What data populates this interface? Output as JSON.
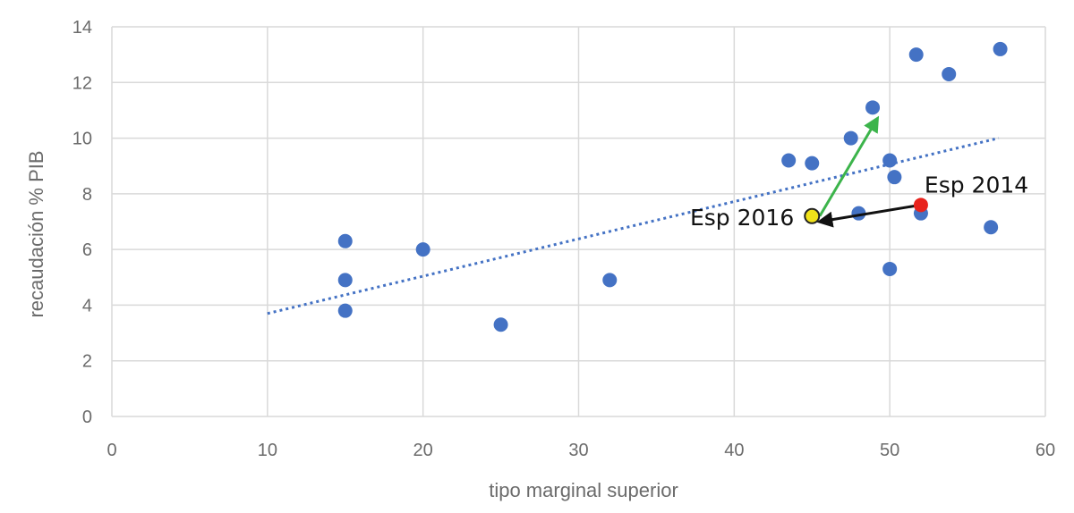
{
  "chart_data": {
    "type": "scatter",
    "title": "",
    "xlabel": "tipo marginal superior",
    "ylabel": "recaudación % PIB",
    "xlim": [
      0,
      60
    ],
    "ylim": [
      0,
      14
    ],
    "x_ticks": [
      0,
      10,
      20,
      30,
      40,
      50,
      60
    ],
    "y_ticks": [
      0,
      2,
      4,
      6,
      8,
      10,
      12,
      14
    ],
    "grid": true,
    "legend": "none",
    "points": [
      {
        "x": 15,
        "y": 6.3
      },
      {
        "x": 15,
        "y": 4.9
      },
      {
        "x": 15,
        "y": 3.8
      },
      {
        "x": 20,
        "y": 6.0
      },
      {
        "x": 25,
        "y": 3.3
      },
      {
        "x": 32,
        "y": 4.9
      },
      {
        "x": 43.5,
        "y": 9.2
      },
      {
        "x": 45,
        "y": 9.1
      },
      {
        "x": 47.5,
        "y": 10.0
      },
      {
        "x": 48,
        "y": 7.3
      },
      {
        "x": 48.9,
        "y": 11.1
      },
      {
        "x": 50,
        "y": 9.2
      },
      {
        "x": 50.3,
        "y": 8.6
      },
      {
        "x": 50,
        "y": 5.3
      },
      {
        "x": 51.7,
        "y": 13.0
      },
      {
        "x": 52,
        "y": 7.3
      },
      {
        "x": 53.8,
        "y": 12.3
      },
      {
        "x": 56.5,
        "y": 6.8
      },
      {
        "x": 57.1,
        "y": 13.2
      }
    ],
    "trendline": {
      "x1": 10,
      "y1": 3.7,
      "x2": 57,
      "y2": 10.0
    },
    "highlights": [
      {
        "label": "Esp 2014",
        "x": 52,
        "y": 7.6,
        "color": "#e8231d"
      },
      {
        "label": "Esp 2016",
        "x": 45,
        "y": 7.2,
        "color": "#f1e21a"
      }
    ],
    "arrows": [
      {
        "x1": 52,
        "y1": 7.6,
        "x2": 45.5,
        "y2": 7.0,
        "color": "#111111"
      },
      {
        "x1": 45.5,
        "y1": 7.2,
        "x2": 49.2,
        "y2": 10.7,
        "color": "#3cb44b"
      }
    ],
    "colors": {
      "points": "#4472c4",
      "trendline": "#4472c4",
      "grid": "#d9d9d9"
    }
  }
}
